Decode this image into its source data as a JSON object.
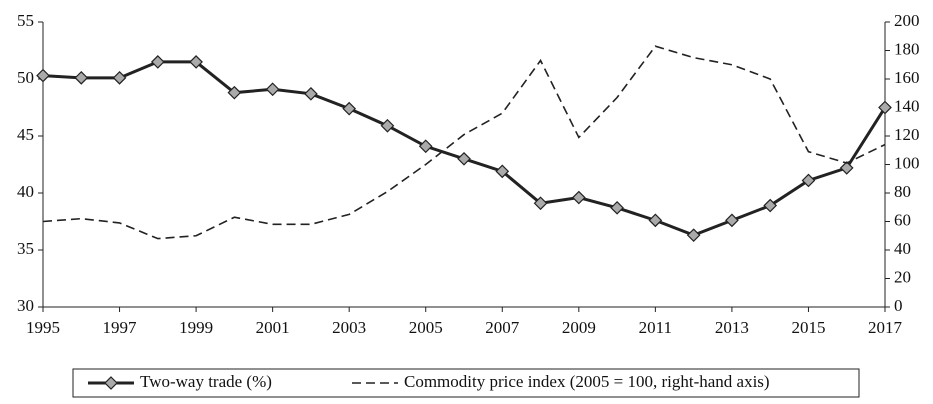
{
  "chart_data": {
    "type": "line",
    "x": [
      1995,
      1996,
      1997,
      1998,
      1999,
      2000,
      2001,
      2002,
      2003,
      2004,
      2005,
      2006,
      2007,
      2008,
      2009,
      2010,
      2011,
      2012,
      2013,
      2014,
      2015,
      2016,
      2017
    ],
    "series": [
      {
        "name": "Two-way trade (%)",
        "color": "#222222",
        "marker": "diamond",
        "values": [
          50.3,
          50.1,
          50.1,
          51.5,
          51.5,
          48.8,
          49.1,
          48.7,
          47.4,
          45.9,
          44.1,
          43.0,
          41.9,
          39.1,
          39.6,
          38.7,
          37.6,
          36.3,
          37.6,
          38.9,
          41.1,
          42.2,
          47.5
        ]
      },
      {
        "name": "Commodity price index (2005 = 100, right-hand axis)",
        "color": "#222222",
        "dashed": true,
        "axis": "y2",
        "values": [
          60,
          62,
          59,
          48,
          50,
          63,
          58,
          58,
          65,
          81,
          100,
          121,
          136,
          173,
          119,
          147,
          183,
          175,
          170,
          160,
          109,
          101,
          114
        ]
      }
    ],
    "xlim": [
      1995,
      2017
    ],
    "xticks": [
      1995,
      1997,
      1999,
      2001,
      2003,
      2005,
      2007,
      2009,
      2011,
      2013,
      2015,
      2017
    ],
    "ylim": [
      30,
      55
    ],
    "yticks": [
      30,
      35,
      40,
      45,
      50,
      55
    ],
    "y2lim": [
      0,
      200
    ],
    "y2ticks": [
      0,
      20,
      40,
      60,
      80,
      100,
      120,
      140,
      160,
      180,
      200
    ],
    "legend": "bottom",
    "grid": false
  }
}
